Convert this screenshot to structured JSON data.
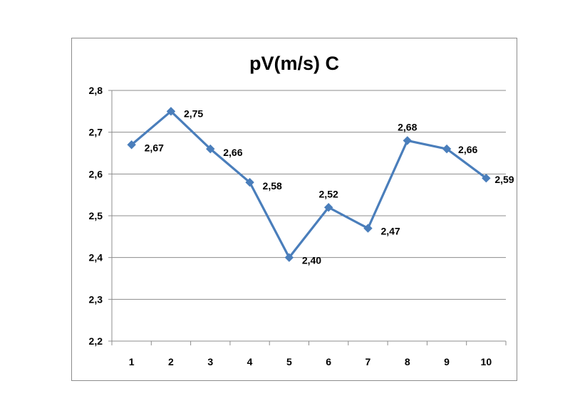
{
  "chart_data": {
    "type": "line",
    "title": "pV(m/s) C",
    "xlabel": "",
    "ylabel": "",
    "categories": [
      "1",
      "2",
      "3",
      "4",
      "5",
      "6",
      "7",
      "8",
      "9",
      "10"
    ],
    "series": [
      {
        "values": [
          2.67,
          2.75,
          2.66,
          2.58,
          2.4,
          2.52,
          2.47,
          2.68,
          2.66,
          2.59
        ],
        "labels": [
          "2,67",
          "2,75",
          "2,66",
          "2,58",
          "2,40",
          "2,52",
          "2,47",
          "2,68",
          "2,66",
          "2,59"
        ],
        "color": "#4a7ebb",
        "marker": "diamond"
      }
    ],
    "y_ticks": [
      "2,2",
      "2,3",
      "2,4",
      "2,5",
      "2,6",
      "2,7",
      "2,8"
    ],
    "ylim": [
      2.2,
      2.8
    ],
    "grid": true,
    "legend": "none"
  }
}
